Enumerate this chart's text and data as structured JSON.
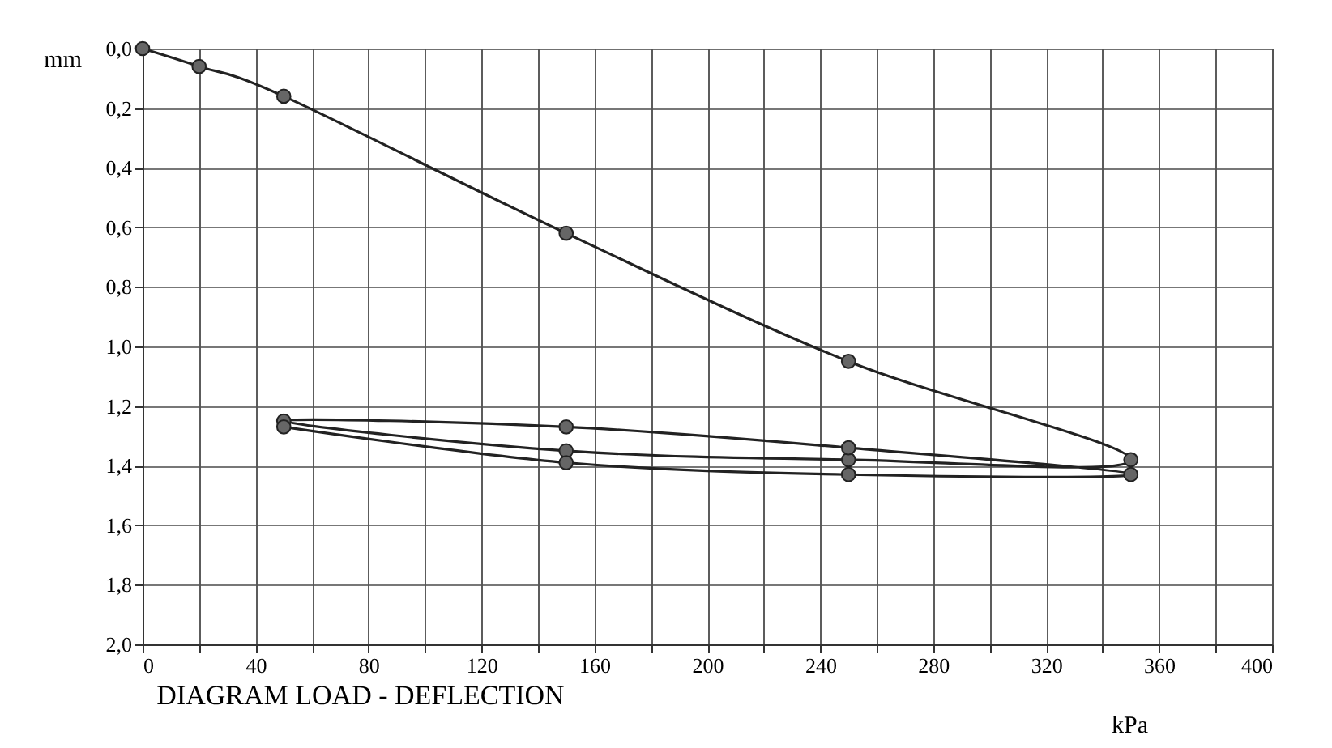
{
  "chart_data": {
    "type": "line",
    "title": "DIAGRAM  LOAD - DEFLECTION",
    "xlabel": "kPa",
    "ylabel": "mm",
    "x": [
      0,
      20,
      50,
      150,
      250,
      350,
      250,
      150,
      50,
      150,
      250,
      350,
      250,
      150,
      50
    ],
    "series": [
      {
        "color": "#222222",
        "values": [
          0,
          0.06,
          0.16,
          0.62,
          1.05,
          1.38,
          1.38,
          1.35,
          1.25,
          1.27,
          1.34,
          1.43,
          1.43,
          1.39,
          1.27
        ]
      }
    ],
    "xlim": [
      0,
      400
    ],
    "xticks": [
      0,
      {
        "value": 20,
        "label": null
      },
      40,
      {
        "value": 60,
        "label": null
      },
      80,
      {
        "value": 100,
        "label": null
      },
      120,
      {
        "value": 140,
        "label": null
      },
      160,
      {
        "value": 180,
        "label": null
      },
      200,
      {
        "value": 220,
        "label": null
      },
      240,
      {
        "value": 260,
        "label": null
      },
      280,
      {
        "value": 300,
        "label": null
      },
      320,
      {
        "value": 340,
        "label": null
      },
      360,
      {
        "value": 380,
        "label": null
      },
      400
    ],
    "ylim": [
      2.0,
      0
    ],
    "yticks": [
      {
        "value": 0,
        "label": "0,0"
      },
      {
        "value": 0.2,
        "label": "0,2"
      },
      {
        "value": 0.4,
        "label": "0,4"
      },
      {
        "value": 0.6,
        "label": "0,6"
      },
      {
        "value": 0.8,
        "label": "0,8"
      },
      {
        "value": 1.0,
        "label": "1,0"
      },
      {
        "value": 1.2,
        "label": "1,2"
      },
      {
        "value": 1.4,
        "label": "1,4"
      },
      {
        "value": 1.6,
        "label": "1,6"
      },
      {
        "value": 1.8,
        "label": "1,8"
      },
      {
        "value": 2.0,
        "label": "2,0"
      }
    ],
    "grid": true,
    "legend": false,
    "marker": "circle",
    "line_style": "solid"
  }
}
